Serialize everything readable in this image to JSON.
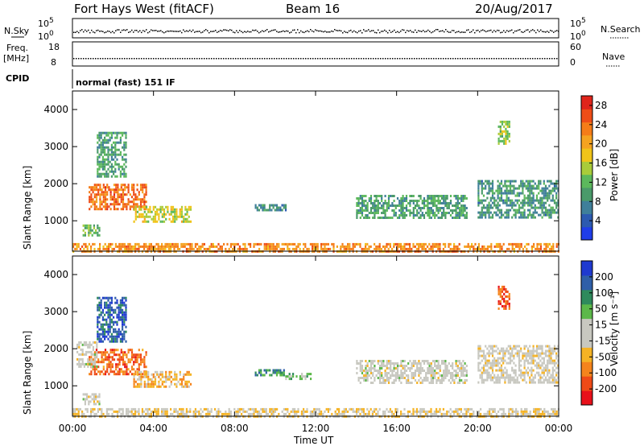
{
  "header": {
    "station": "Fort Hays West (fitACF)",
    "beam": "Beam 16",
    "date": "20/Aug/2017"
  },
  "status_panels": {
    "nsky_label": "N.Sky",
    "nsearch_label": "N.Search",
    "freq_label_top": "Freq.",
    "freq_label_unit": "[MHz]",
    "nave_label": "Nave",
    "cpid_label": "CPID",
    "cpid_value": "normal (fast) 151 IF",
    "noise_ticks_left": [
      "10^5",
      "10^0"
    ],
    "noise_ticks_right": [
      "10^5",
      "10^0"
    ],
    "freq_ticks": [
      "18",
      "8"
    ],
    "nave_ticks": [
      "60",
      "0"
    ]
  },
  "chart_data": [
    {
      "type": "heatmap",
      "name": "power",
      "xlabel": "",
      "ylabel": "Slant Range [km]",
      "x_ticks": [
        "00:00",
        "04:00",
        "08:00",
        "12:00",
        "16:00",
        "20:00",
        "00:00"
      ],
      "xlim_hours": [
        0,
        24
      ],
      "ylim": [
        180,
        4500
      ],
      "y_ticks": [
        1000,
        2000,
        3000,
        4000
      ],
      "colorbar": {
        "label": "Power [dB]",
        "ticks": [
          4,
          8,
          12,
          16,
          20,
          24,
          28
        ],
        "range": [
          0,
          30
        ],
        "colors": [
          "#1f3de8",
          "#2c5ab0",
          "#3f7f9a",
          "#4a9a6a",
          "#5cb85c",
          "#a9cc3a",
          "#f0c419",
          "#f5a320",
          "#f57c18",
          "#ee4d17",
          "#e0251b"
        ]
      },
      "echo_regions": [
        {
          "t": [
            0.8,
            3.6
          ],
          "r": [
            1300,
            2000
          ],
          "value": 24
        },
        {
          "t": [
            3.0,
            5.8
          ],
          "r": [
            1000,
            1400
          ],
          "value": 16
        },
        {
          "t": [
            0.5,
            1.3
          ],
          "r": [
            600,
            900
          ],
          "value": 12
        },
        {
          "t": [
            1.2,
            2.6
          ],
          "r": [
            2200,
            3400
          ],
          "value": 10
        },
        {
          "t": [
            9.0,
            10.5
          ],
          "r": [
            1300,
            1450
          ],
          "value": 8
        },
        {
          "t": [
            14.0,
            19.5
          ],
          "r": [
            1100,
            1700
          ],
          "value": 10
        },
        {
          "t": [
            20.0,
            24.0
          ],
          "r": [
            1100,
            2100
          ],
          "value": 9
        },
        {
          "t": [
            21.0,
            21.6
          ],
          "r": [
            3100,
            3700
          ],
          "value": 14
        },
        {
          "t": [
            0.0,
            24.0
          ],
          "r": [
            180,
            400
          ],
          "value": 22
        }
      ]
    },
    {
      "type": "heatmap",
      "name": "velocity",
      "xlabel": "Time UT",
      "ylabel": "Slant Range [km]",
      "x_ticks": [
        "00:00",
        "04:00",
        "08:00",
        "12:00",
        "16:00",
        "20:00",
        "00:00"
      ],
      "xlim_hours": [
        0,
        24
      ],
      "ylim": [
        180,
        4500
      ],
      "y_ticks": [
        1000,
        2000,
        3000,
        4000
      ],
      "colorbar": {
        "label": "Velocity [m s⁻¹]",
        "ticks": [
          "-200",
          "-100",
          "-50",
          "-15",
          "15",
          "50",
          "100",
          "200"
        ],
        "range": [
          -250,
          250
        ],
        "colors": [
          "#e8101a",
          "#ef4a17",
          "#f5841c",
          "#f5b325",
          "#c8c8c0",
          "#c8c8c0",
          "#5cb84a",
          "#2e8a5c",
          "#2f5fa8",
          "#1f3ad0"
        ]
      },
      "echo_regions": [
        {
          "t": [
            0.8,
            3.6
          ],
          "r": [
            1300,
            2000
          ],
          "value": -150
        },
        {
          "t": [
            3.0,
            5.8
          ],
          "r": [
            1000,
            1400
          ],
          "value": -80
        },
        {
          "t": [
            0.2,
            1.2
          ],
          "r": [
            1500,
            2200
          ],
          "value": 0
        },
        {
          "t": [
            0.5,
            1.3
          ],
          "r": [
            500,
            800
          ],
          "value": 0
        },
        {
          "t": [
            1.2,
            2.6
          ],
          "r": [
            2200,
            3400
          ],
          "value": 180
        },
        {
          "t": [
            9.0,
            10.5
          ],
          "r": [
            1300,
            1450
          ],
          "value": 120
        },
        {
          "t": [
            10.5,
            11.8
          ],
          "r": [
            1200,
            1350
          ],
          "value": 60
        },
        {
          "t": [
            14.0,
            19.5
          ],
          "r": [
            1100,
            1700
          ],
          "value": 0
        },
        {
          "t": [
            20.0,
            24.0
          ],
          "r": [
            1100,
            2100
          ],
          "value": -10
        },
        {
          "t": [
            21.0,
            21.6
          ],
          "r": [
            3100,
            3700
          ],
          "value": -180
        },
        {
          "t": [
            0.0,
            24.0
          ],
          "r": [
            180,
            400
          ],
          "value": -40
        }
      ]
    }
  ]
}
